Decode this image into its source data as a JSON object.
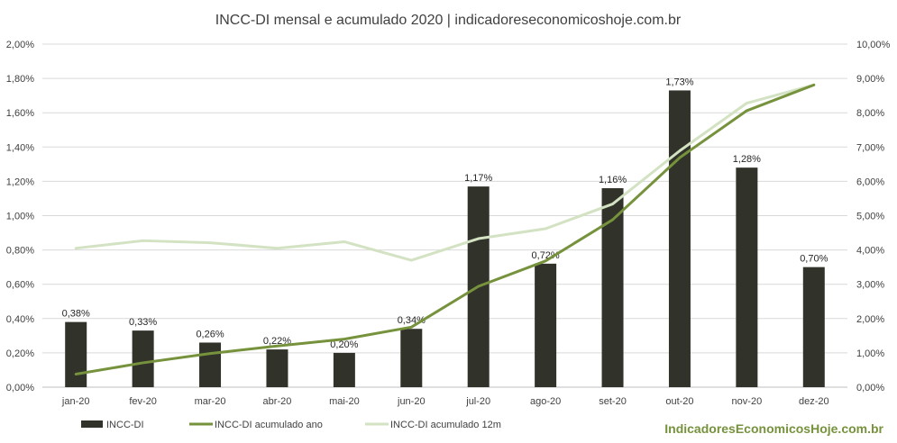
{
  "chart_data": {
    "type": "bar",
    "title": "INCC-DI mensal e acumulado 2020 | indicadoreseconomicoshoje.com.br",
    "categories": [
      "jan-20",
      "fev-20",
      "mar-20",
      "abr-20",
      "mai-20",
      "jun-20",
      "jul-20",
      "ago-20",
      "set-20",
      "out-20",
      "nov-20",
      "dez-20"
    ],
    "y_left": {
      "min": 0,
      "max": 2.0,
      "step": 0.2,
      "ticks": [
        "0,00%",
        "0,20%",
        "0,40%",
        "0,60%",
        "0,80%",
        "1,00%",
        "1,20%",
        "1,40%",
        "1,60%",
        "1,80%",
        "2,00%"
      ]
    },
    "y_right": {
      "min": 0,
      "max": 10.0,
      "step": 1.0,
      "ticks": [
        "0,00%",
        "1,00%",
        "2,00%",
        "3,00%",
        "4,00%",
        "5,00%",
        "6,00%",
        "7,00%",
        "8,00%",
        "9,00%",
        "10,00%"
      ]
    },
    "grid": true,
    "legend_position": "bottom-left",
    "series": [
      {
        "name": "INCC-DI",
        "kind": "bar",
        "axis": "left",
        "color": "#313229",
        "values": [
          0.38,
          0.33,
          0.26,
          0.22,
          0.2,
          0.34,
          1.17,
          0.72,
          1.16,
          1.73,
          1.28,
          0.7
        ],
        "labels": [
          "0,38%",
          "0,33%",
          "0,26%",
          "0,22%",
          "0,20%",
          "0,34%",
          "1,17%",
          "0,72%",
          "1,16%",
          "1,73%",
          "1,28%",
          "0,70%"
        ]
      },
      {
        "name": "INCC-DI acumulado ano",
        "kind": "line",
        "axis": "right",
        "color": "#76923c",
        "values": [
          0.38,
          0.71,
          0.98,
          1.2,
          1.4,
          1.75,
          2.94,
          3.68,
          4.88,
          6.69,
          8.06,
          8.81
        ]
      },
      {
        "name": "INCC-DI acumulado 12m",
        "kind": "line",
        "axis": "right",
        "color": "#d3e2c2",
        "values": [
          4.05,
          4.27,
          4.21,
          4.05,
          4.24,
          3.7,
          4.33,
          4.62,
          5.34,
          6.89,
          8.28,
          8.81
        ]
      }
    ]
  },
  "watermark": "IndicadoresEconomicosHoje.com.br"
}
